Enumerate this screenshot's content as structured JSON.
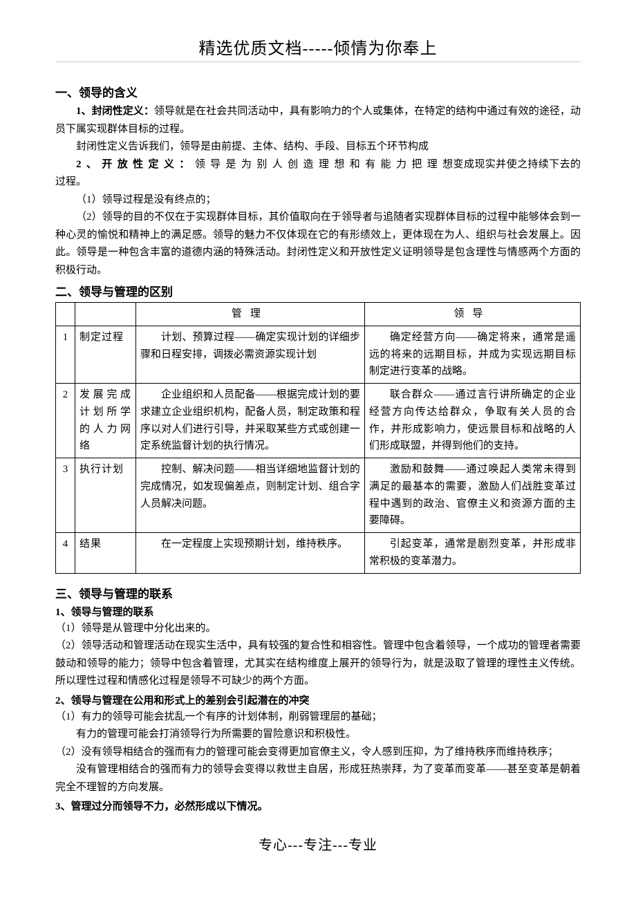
{
  "header": {
    "title": "精选优质文档-----倾情为你奉上"
  },
  "section1": {
    "title": "一、领导的含义",
    "def1_label": "1、封闭性定义：",
    "def1_text": "领导就是在社会共同活动中，具有影响力的个人或集体，在特定的结构中通过有效的途径，动员下属实现群体目标的过程。",
    "def1_explain": "封闭性定义告诉我们，领导是由前提、主体、结构、手段、目标五个环节构成",
    "def2_label": "2、开放性定义：",
    "def2_text": "领导是为别人创造理想和有能力把理想变成现实并使之持续下去的过程。",
    "point1": "（1）领导过程是没有终点的；",
    "point2": "（2）领导的目的不仅在于实现群体目标，其价值取向在于领导者与追随者实现群体目标的过程中能够体会到一种心灵的愉悦和精神上的满足感。领导的魅力不仅体现在它的有形绩效上，更体现在为人、组织与社会发展上。因此。领导是一种包含丰富的道德内涵的特殊活动。封闭性定义和开放性定义证明领导是包含理性与情感两个方面的积极行动。"
  },
  "section2": {
    "title": "二、领导与管理的区别",
    "table": {
      "header": {
        "col3": "管理",
        "col4": "领导"
      },
      "rows": [
        {
          "num": "1",
          "label": "制定过程",
          "management": "计划、预算过程——确定实现计划的详细步骤和日程安排，调拨必需资源实现计划",
          "leadership": "确定经营方向——确定将来，通常是遥远的将来的远期目标，并成为实现远期目标制定进行变革的战略。"
        },
        {
          "num": "2",
          "label": "发展完成计划所学的人力网络",
          "management": "企业组织和人员配备——根据完成计划的要求建立企业组织机构，配备人员，制定政策和程序以对人们进行引导，并采取某些方式或创建一定系统监督计划的执行情况。",
          "leadership": "联合群众——通过言行讲所确定的企业经营方向传达给群众，争取有关人员的合作，并形成影响力，使远景目标和战略的人们形成联盟，并得到他们的支持。"
        },
        {
          "num": "3",
          "label": "执行计划",
          "management": "控制、解决问题——相当详细地监督计划的完成情况，如发现偏差点，则制定计划、组合字人员解决问题。",
          "leadership": "激励和鼓舞——通过唤起人类常未得到满足的最基本的需要，激励人们战胜变革过程中遇到的政治、官僚主义和资源方面的主要障碍。"
        },
        {
          "num": "4",
          "label": "结果",
          "management": "在一定程度上实现预期计划，维持秩序。",
          "leadership": "引起变革，通常是剧烈变革，并形成非常积极的变革潜力。"
        }
      ]
    }
  },
  "section3": {
    "title": "三、领导与管理的联系",
    "sub1_title": "1、领导与管理的联系",
    "sub1_p1": "（1）领导是从管理中分化出来的。",
    "sub1_p2": "（2）领导活动和管理活动在现实生活中，具有较强的复合性和相容性。管理中包含着领导，一个成功的管理者需要鼓动和领导的能力；领导中包含着管理，尤其实在结构维度上展开的领导行为，就是汲取了管理的理性主义传统。所以理性过程和情感化过程是领导不可缺少的两个方面。",
    "sub2_title": "2、领导与管理在公用和形式上的差别会引起潜在的冲突",
    "sub2_p1": "（1）有力的领导可能会扰乱一个有序的计划体制，削弱管理层的基础；",
    "sub2_p1b": "有力的管理可能会打消领导行为所需要的冒险意识和积极性。",
    "sub2_p2": "（2）没有领导相结合的强而有力的管理可能会变得更加官僚主义，令人感到压抑，为了维持秩序而维持秩序；",
    "sub2_p2b": "没有管理相结合的强而有力的领导会变得以救世主自居，形成狂热崇拜，为了变革而变革——甚至变革是朝着完全不理智的方向发展。",
    "sub3_title": "3、管理过分而领导不力，必然形成以下情况。"
  },
  "footer": {
    "text": "专心---专注---专业"
  },
  "colors": {
    "text": "#000000",
    "background": "#ffffff",
    "underline": "#cccccc",
    "border": "#000000"
  }
}
